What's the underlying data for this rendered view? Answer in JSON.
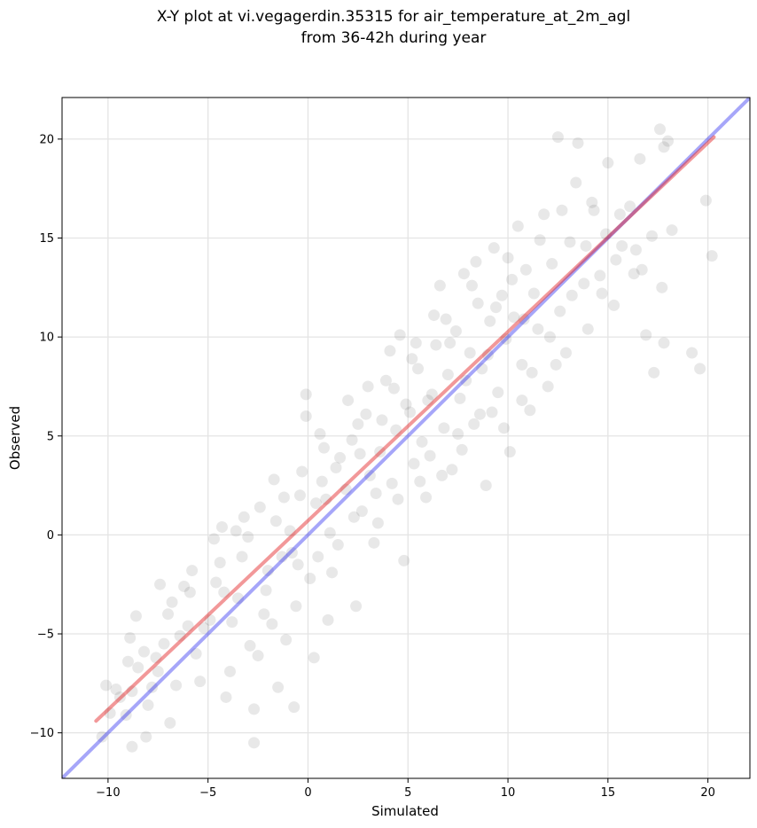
{
  "chart_data": {
    "type": "scatter",
    "title_line1": "X-Y plot at vi.vegagerdin.35315 for air_temperature_at_2m_agl",
    "title_line2": "from 36-42h during year",
    "xlabel": "Simulated",
    "ylabel": "Observed",
    "xlim": [
      -12.3,
      22.1
    ],
    "ylim": [
      -12.3,
      22.1
    ],
    "xticks": [
      -10,
      -5,
      0,
      5,
      10,
      15,
      20
    ],
    "yticks": [
      -10,
      -5,
      0,
      5,
      10,
      15,
      20
    ],
    "xtick_labels": [
      "−10",
      "−5",
      "0",
      "5",
      "10",
      "15",
      "20"
    ],
    "ytick_labels": [
      "−10",
      "−5",
      "0",
      "5",
      "10",
      "15",
      "20"
    ],
    "grid": true,
    "point_color": "#000000",
    "identity_line": {
      "x": [
        -12.3,
        22.1
      ],
      "y": [
        -12.3,
        22.1
      ],
      "color": "#0000ee"
    },
    "fit_line": {
      "x": [
        -10.6,
        20.3
      ],
      "y": [
        -9.4,
        20.1
      ],
      "color": "#e31a1c"
    },
    "series": [
      {
        "values": [
          [
            -10.1,
            -7.6
          ],
          [
            -9.6,
            -7.8
          ],
          [
            -9.4,
            -8.2
          ],
          [
            -8.8,
            -7.9
          ],
          [
            -8.6,
            -4.1
          ],
          [
            -8.5,
            -6.7
          ],
          [
            -8.9,
            -5.2
          ],
          [
            -8.1,
            -10.2
          ],
          [
            -8.8,
            -10.7
          ],
          [
            -8.0,
            -8.6
          ],
          [
            -7.6,
            -6.2
          ],
          [
            -7.2,
            -5.5
          ],
          [
            -7.4,
            -2.5
          ],
          [
            -6.8,
            -3.4
          ],
          [
            -6.6,
            -7.6
          ],
          [
            -6.9,
            -9.5
          ],
          [
            -6.2,
            -2.6
          ],
          [
            -5.8,
            -1.8
          ],
          [
            -5.6,
            -6.0
          ],
          [
            -5.2,
            -4.7
          ],
          [
            -4.7,
            -0.2
          ],
          [
            -4.3,
            0.4
          ],
          [
            -4.2,
            -2.9
          ],
          [
            -4.1,
            -8.2
          ],
          [
            -3.8,
            -4.4
          ],
          [
            -3.3,
            -1.1
          ],
          [
            -3.2,
            0.9
          ],
          [
            -2.9,
            -5.6
          ],
          [
            -2.7,
            -8.8
          ],
          [
            -2.7,
            -10.5
          ],
          [
            -2.4,
            1.4
          ],
          [
            -2.1,
            -2.8
          ],
          [
            -1.7,
            2.8
          ],
          [
            -1.8,
            -4.5
          ],
          [
            -1.5,
            -7.7
          ],
          [
            -1.3,
            -1.1
          ],
          [
            -0.9,
            0.2
          ],
          [
            -0.7,
            -8.7
          ],
          [
            -0.6,
            -3.6
          ],
          [
            -0.4,
            2.0
          ],
          [
            -0.1,
            7.1
          ],
          [
            -0.1,
            6.0
          ],
          [
            0.3,
            -6.2
          ],
          [
            0.5,
            -1.1
          ],
          [
            0.6,
            5.1
          ],
          [
            0.9,
            1.8
          ],
          [
            1.0,
            -4.3
          ],
          [
            1.1,
            0.1
          ],
          [
            1.4,
            3.4
          ],
          [
            1.9,
            2.3
          ],
          [
            2.2,
            4.8
          ],
          [
            2.4,
            -3.6
          ],
          [
            2.7,
            1.2
          ],
          [
            2.9,
            6.1
          ],
          [
            3.1,
            3.0
          ],
          [
            3.3,
            -0.4
          ],
          [
            3.6,
            4.2
          ],
          [
            3.9,
            7.8
          ],
          [
            4.2,
            2.6
          ],
          [
            4.4,
            5.3
          ],
          [
            4.6,
            10.1
          ],
          [
            4.8,
            -1.3
          ],
          [
            5.1,
            6.2
          ],
          [
            5.3,
            3.6
          ],
          [
            5.5,
            8.4
          ],
          [
            5.7,
            4.7
          ],
          [
            5.9,
            1.9
          ],
          [
            6.2,
            7.1
          ],
          [
            6.4,
            9.6
          ],
          [
            6.6,
            12.6
          ],
          [
            6.8,
            5.4
          ],
          [
            7.0,
            8.1
          ],
          [
            7.2,
            3.3
          ],
          [
            7.4,
            10.3
          ],
          [
            7.6,
            6.9
          ],
          [
            7.8,
            13.2
          ],
          [
            8.1,
            9.2
          ],
          [
            8.3,
            5.6
          ],
          [
            8.5,
            11.7
          ],
          [
            8.7,
            8.4
          ],
          [
            8.9,
            2.5
          ],
          [
            9.1,
            10.8
          ],
          [
            9.3,
            14.5
          ],
          [
            9.5,
            7.2
          ],
          [
            9.7,
            12.1
          ],
          [
            9.9,
            9.9
          ],
          [
            10.1,
            4.2
          ],
          [
            10.3,
            11.0
          ],
          [
            10.5,
            15.6
          ],
          [
            10.7,
            8.6
          ],
          [
            10.9,
            13.4
          ],
          [
            11.1,
            6.3
          ],
          [
            11.3,
            12.2
          ],
          [
            11.5,
            10.4
          ],
          [
            11.8,
            16.2
          ],
          [
            12.0,
            7.5
          ],
          [
            12.2,
            13.7
          ],
          [
            12.5,
            20.1
          ],
          [
            12.6,
            11.3
          ],
          [
            12.9,
            9.2
          ],
          [
            13.1,
            14.8
          ],
          [
            13.4,
            17.8
          ],
          [
            13.5,
            19.8
          ],
          [
            13.8,
            12.7
          ],
          [
            14.0,
            10.4
          ],
          [
            14.3,
            16.4
          ],
          [
            14.6,
            13.1
          ],
          [
            14.9,
            15.2
          ],
          [
            15.0,
            18.8
          ],
          [
            15.3,
            11.6
          ],
          [
            15.7,
            14.6
          ],
          [
            16.1,
            16.6
          ],
          [
            16.3,
            13.2
          ],
          [
            16.6,
            19.0
          ],
          [
            16.9,
            10.1
          ],
          [
            17.2,
            15.1
          ],
          [
            17.3,
            8.2
          ],
          [
            17.6,
            20.5
          ],
          [
            17.8,
            19.6
          ],
          [
            17.7,
            12.5
          ],
          [
            17.8,
            9.7
          ],
          [
            18.0,
            19.9
          ],
          [
            19.9,
            16.9
          ],
          [
            20.2,
            14.1
          ],
          [
            19.2,
            9.2
          ],
          [
            19.6,
            8.4
          ],
          [
            18.2,
            15.4
          ],
          [
            16.7,
            13.4
          ],
          [
            15.6,
            16.2
          ],
          [
            14.7,
            12.2
          ],
          [
            13.9,
            14.6
          ],
          [
            12.7,
            16.4
          ],
          [
            12.1,
            10.0
          ],
          [
            11.2,
            8.2
          ],
          [
            10.7,
            6.8
          ],
          [
            10.2,
            12.9
          ],
          [
            9.8,
            5.4
          ],
          [
            9.4,
            11.5
          ],
          [
            9.0,
            9.1
          ],
          [
            8.6,
            6.1
          ],
          [
            8.2,
            12.6
          ],
          [
            7.9,
            7.8
          ],
          [
            7.5,
            5.1
          ],
          [
            7.1,
            9.7
          ],
          [
            6.7,
            3.0
          ],
          [
            6.3,
            11.1
          ],
          [
            6.0,
            6.8
          ],
          [
            5.6,
            2.7
          ],
          [
            5.2,
            8.9
          ],
          [
            4.9,
            6.6
          ],
          [
            4.5,
            1.8
          ],
          [
            4.1,
            9.3
          ],
          [
            3.7,
            5.8
          ],
          [
            3.4,
            2.1
          ],
          [
            3.0,
            7.5
          ],
          [
            2.6,
            4.1
          ],
          [
            2.3,
            0.9
          ],
          [
            2.0,
            6.8
          ],
          [
            1.6,
            3.9
          ],
          [
            1.2,
            -1.9
          ],
          [
            0.8,
            4.4
          ],
          [
            0.4,
            1.6
          ],
          [
            0.1,
            -2.2
          ],
          [
            -0.3,
            3.2
          ],
          [
            -0.8,
            -0.9
          ],
          [
            -1.1,
            -5.3
          ],
          [
            -1.6,
            0.7
          ],
          [
            -2.0,
            -1.8
          ],
          [
            -2.5,
            -6.1
          ],
          [
            -3.0,
            -0.1
          ],
          [
            -3.5,
            -3.2
          ],
          [
            -3.9,
            -6.9
          ],
          [
            -4.4,
            -1.4
          ],
          [
            -4.9,
            -4.3
          ],
          [
            -5.4,
            -7.4
          ],
          [
            -5.9,
            -2.9
          ],
          [
            -6.4,
            -5.1
          ],
          [
            -7.0,
            -4.0
          ],
          [
            -7.5,
            -6.9
          ],
          [
            -8.2,
            -5.9
          ],
          [
            -9.1,
            -9.1
          ],
          [
            -9.9,
            -9.0
          ],
          [
            -10.3,
            -10.2
          ],
          [
            -9.0,
            -6.4
          ],
          [
            -7.8,
            -7.7
          ],
          [
            -6.0,
            -4.6
          ],
          [
            -4.6,
            -2.4
          ],
          [
            -3.6,
            0.2
          ],
          [
            -2.2,
            -4.0
          ],
          [
            -1.2,
            1.9
          ],
          [
            -0.5,
            -1.5
          ],
          [
            0.7,
            2.7
          ],
          [
            1.5,
            -0.5
          ],
          [
            2.5,
            5.6
          ],
          [
            3.5,
            0.6
          ],
          [
            4.3,
            7.4
          ],
          [
            5.4,
            9.7
          ],
          [
            6.1,
            4.0
          ],
          [
            6.9,
            10.9
          ],
          [
            7.7,
            4.3
          ],
          [
            8.4,
            13.8
          ],
          [
            9.2,
            6.2
          ],
          [
            10.0,
            14.0
          ],
          [
            10.8,
            10.9
          ],
          [
            11.6,
            14.9
          ],
          [
            12.4,
            8.6
          ],
          [
            13.2,
            12.1
          ],
          [
            14.2,
            16.8
          ],
          [
            15.4,
            13.9
          ],
          [
            16.4,
            14.4
          ]
        ]
      }
    ]
  }
}
